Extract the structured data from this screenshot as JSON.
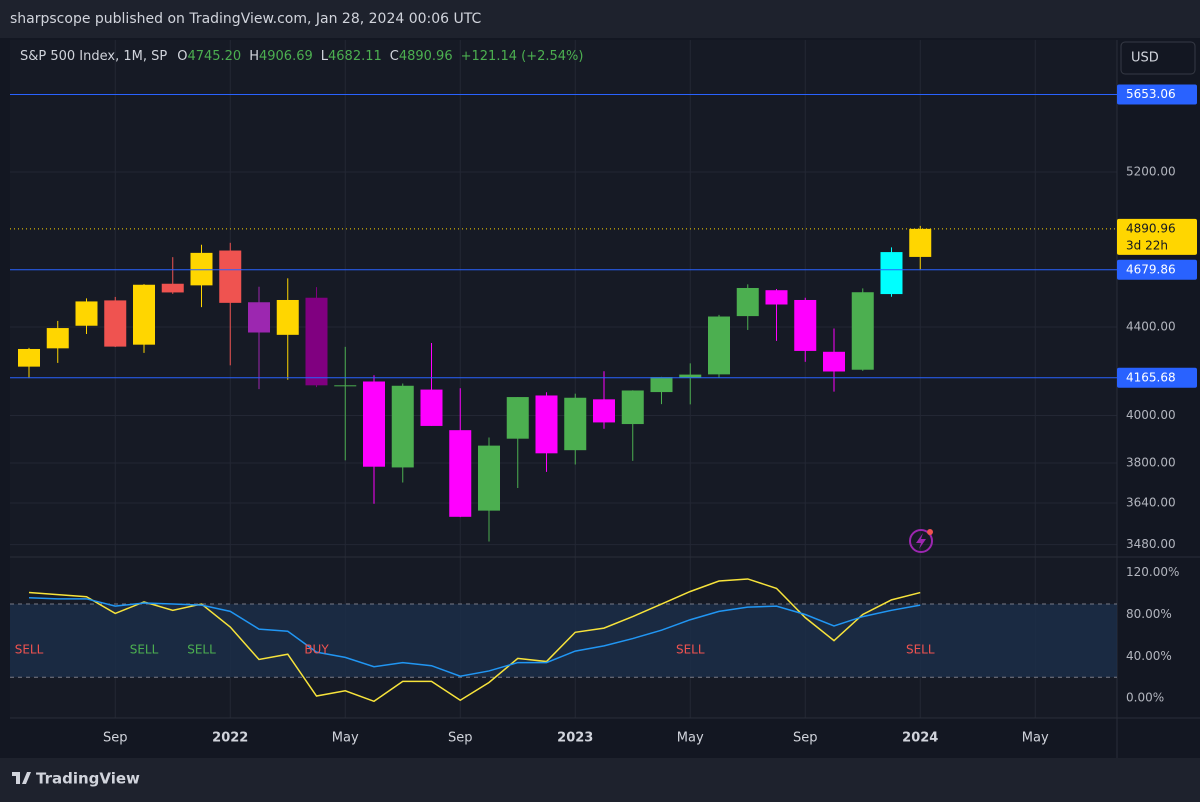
{
  "header": {
    "title": "sharpscope published on TradingView.com, Jan 28, 2024 00:06 UTC"
  },
  "footer": {
    "brand": "TradingView"
  },
  "chart_data": [
    {
      "type": "candlestick",
      "currency": "USD",
      "legend": {
        "symbol": "S&P 500 Index, 1M, SP",
        "fields": [
          {
            "key": "O",
            "value": 4745.2,
            "label": "4745.20"
          },
          {
            "key": "H",
            "value": 4906.69,
            "label": "4906.69"
          },
          {
            "key": "L",
            "value": 4682.11,
            "label": "4682.11"
          },
          {
            "key": "C",
            "value": 4890.96,
            "label": "4890.96"
          }
        ],
        "change": "+121.14 (+2.54%)"
      },
      "log_scale": true,
      "grid": true,
      "categories": [
        null,
        null,
        null,
        "Sep",
        null,
        null,
        null,
        "2022",
        null,
        null,
        null,
        "May",
        null,
        null,
        null,
        "Sep",
        null,
        null,
        null,
        "2023",
        null,
        null,
        null,
        "May",
        null,
        null,
        null,
        "Sep",
        null,
        null,
        null,
        "2024",
        null,
        null,
        null,
        "May"
      ],
      "open": [
        4216,
        4300,
        4406,
        4528,
        4317,
        4610,
        4602,
        4778,
        4519,
        4363,
        4541,
        4130,
        4149,
        3782,
        4113,
        3937,
        3610,
        3901,
        4087,
        3853,
        4070,
        3963,
        4102,
        4166,
        4181,
        4452,
        4578,
        4530,
        4284,
        4202,
        4559,
        4745.2,
        null,
        null,
        null,
        null
      ],
      "high": [
        4302,
        4429,
        4538,
        4545,
        4608,
        4744,
        4808,
        4818,
        4595,
        4637,
        4593,
        4307,
        4177,
        4140,
        4325,
        4119,
        3906,
        4080,
        4101,
        4095,
        4195,
        4110,
        4170,
        4231,
        4458,
        4607,
        4584,
        4541,
        4393,
        4587,
        4794,
        4906.69,
        null,
        null,
        null,
        null
      ],
      "low": [
        4164,
        4233,
        4367,
        4306,
        4279,
        4560,
        4495,
        4222,
        4115,
        4157,
        4124,
        3811,
        3637,
        3721,
        3955,
        3585,
        3492,
        3699,
        3764,
        3794,
        3943,
        3809,
        4049,
        4048,
        4167,
        4386,
        4335,
        4238,
        4104,
        4197,
        4546,
        4682.11,
        null,
        null,
        null,
        null
      ],
      "close": [
        4297,
        4395,
        4523,
        4308,
        4605,
        4567,
        4766,
        4516,
        4374,
        4530,
        4132,
        4132,
        3785,
        4130,
        3955,
        3586,
        3872,
        4080,
        3840,
        4077,
        3970,
        4109,
        4169,
        4180,
        4450,
        4589,
        4508,
        4288,
        4194,
        4568,
        4770,
        4890.96,
        null,
        null,
        null,
        null
      ],
      "colors": [
        "#ffd600",
        "#ffd600",
        "#ffd600",
        "#ef5350",
        "#ffd600",
        "#ef5350",
        "#ffd600",
        "#ef5350",
        "#9c27b0",
        "#ffd600",
        "#800080",
        "#4caf50",
        "#ff00ff",
        "#4caf50",
        "#ff00ff",
        "#ff00ff",
        "#4caf50",
        "#4caf50",
        "#ff00ff",
        "#4caf50",
        "#ff00ff",
        "#4caf50",
        "#4caf50",
        "#4caf50",
        "#4caf50",
        "#4caf50",
        "#ff00ff",
        "#ff00ff",
        "#ff00ff",
        "#4caf50",
        "#00ffff",
        "#ffd600",
        null,
        null,
        null,
        null
      ],
      "ylim": [
        3434,
        5995
      ],
      "yticks": [
        {
          "value": 5200,
          "label": "5200.00"
        },
        {
          "value": 4400,
          "label": "4400.00"
        },
        {
          "value": 4000,
          "label": "4000.00"
        },
        {
          "value": 3800,
          "label": "3800.00"
        },
        {
          "value": 3640,
          "label": "3640.00"
        },
        {
          "value": 3480,
          "label": "3480.00"
        }
      ],
      "levels": [
        {
          "value": 5653.06,
          "label": "5653.06"
        },
        {
          "value": 4679.86,
          "label": "4679.86"
        },
        {
          "value": 4165.68,
          "label": "4165.68"
        }
      ],
      "level_color": "#2962ff",
      "last_price": {
        "value": 4890.96,
        "label": "4890.96",
        "countdown": "3d 22h",
        "color": "#ffd600"
      }
    },
    {
      "type": "line",
      "ylim": [
        -19,
        135
      ],
      "yticks": [
        {
          "value": 120,
          "label": "120.00%"
        },
        {
          "value": 80,
          "label": "80.00%"
        },
        {
          "value": 40,
          "label": "40.00%"
        },
        {
          "value": 0,
          "label": "0.00%"
        }
      ],
      "levels": [
        90,
        20
      ],
      "series": [
        {
          "color": "#f7e33b",
          "values": [
            101,
            99,
            97,
            81,
            92,
            84,
            90,
            68,
            37,
            42,
            2,
            7,
            -3,
            16,
            16,
            -2,
            15,
            38,
            35,
            63,
            67,
            78,
            90,
            102,
            112,
            114,
            105,
            77,
            55,
            80,
            94,
            101,
            null,
            null,
            null,
            null
          ]
        },
        {
          "color": "#2196f3",
          "values": [
            96,
            95,
            95,
            88,
            91,
            90,
            89,
            83,
            66,
            64,
            44,
            39,
            30,
            34,
            31,
            21,
            26,
            34,
            34,
            45,
            50,
            57,
            65,
            75,
            83,
            87,
            88,
            80,
            69,
            78,
            84,
            89,
            null,
            null,
            null,
            null
          ]
        }
      ],
      "signals": [
        "SELL",
        null,
        null,
        null,
        "SELL",
        null,
        "SELL",
        null,
        null,
        null,
        "BUY",
        null,
        null,
        null,
        null,
        null,
        null,
        null,
        null,
        null,
        null,
        null,
        null,
        "SELL",
        null,
        null,
        null,
        null,
        null,
        null,
        null,
        "SELL",
        null,
        null,
        null,
        null
      ],
      "signal_colors": [
        "#ef5350",
        null,
        null,
        null,
        "#4caf50",
        null,
        "#4caf50",
        null,
        null,
        null,
        "#ef5350",
        null,
        null,
        null,
        null,
        null,
        null,
        null,
        null,
        null,
        null,
        null,
        null,
        "#ef5350",
        null,
        null,
        null,
        null,
        null,
        null,
        null,
        "#ef5350",
        null,
        null,
        null,
        null
      ]
    }
  ]
}
